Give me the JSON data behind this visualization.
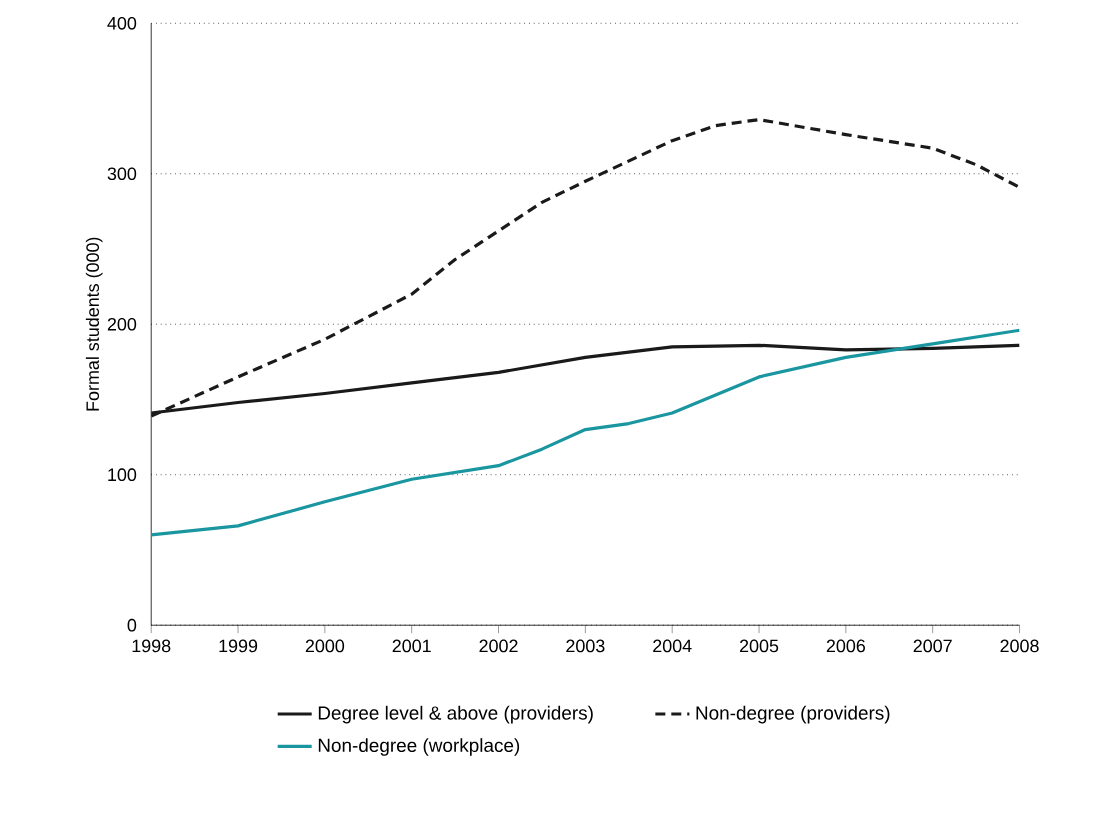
{
  "chart_data": {
    "type": "line",
    "ylabel": "Formal students (000)",
    "xlim": [
      1998,
      2008
    ],
    "xticks": [
      1998,
      1999,
      2000,
      2001,
      2002,
      2003,
      2004,
      2005,
      2006,
      2007,
      2008
    ],
    "ylim": [
      0,
      400
    ],
    "yticks": [
      0,
      100,
      200,
      300,
      400
    ],
    "grid": "y",
    "legend": "bottom",
    "marker": "none",
    "series": [
      {
        "name": "Degree level & above (providers)",
        "color": "#1a1a1a",
        "line_style": "solid",
        "x": [
          1998,
          1999,
          2000,
          2001,
          2002,
          2003,
          2004,
          2005,
          2006,
          2007,
          2008
        ],
        "values": [
          141,
          148,
          154,
          161,
          168,
          178,
          185,
          186,
          183,
          184,
          186
        ]
      },
      {
        "name": "Non-degree (providers)",
        "color": "#1a1a1a",
        "line_style": "dashed",
        "x": [
          1998,
          1999,
          2000,
          2001,
          2001.5,
          2002,
          2002.5,
          2003,
          2004,
          2004.5,
          2005,
          2006,
          2007,
          2007.5,
          2008
        ],
        "values": [
          139,
          165,
          190,
          220,
          243,
          262,
          281,
          295,
          322,
          332,
          336,
          326,
          317,
          306,
          291
        ]
      },
      {
        "name": "Non-degree (workplace)",
        "color": "#1a96a0",
        "line_style": "solid",
        "x": [
          1998,
          1999,
          2000,
          2001,
          2002,
          2002.5,
          2003,
          2003.5,
          2004,
          2005,
          2006,
          2007,
          2008
        ],
        "values": [
          60,
          66,
          82,
          97,
          106,
          117,
          130,
          134,
          141,
          165,
          178,
          187,
          196
        ]
      }
    ]
  }
}
